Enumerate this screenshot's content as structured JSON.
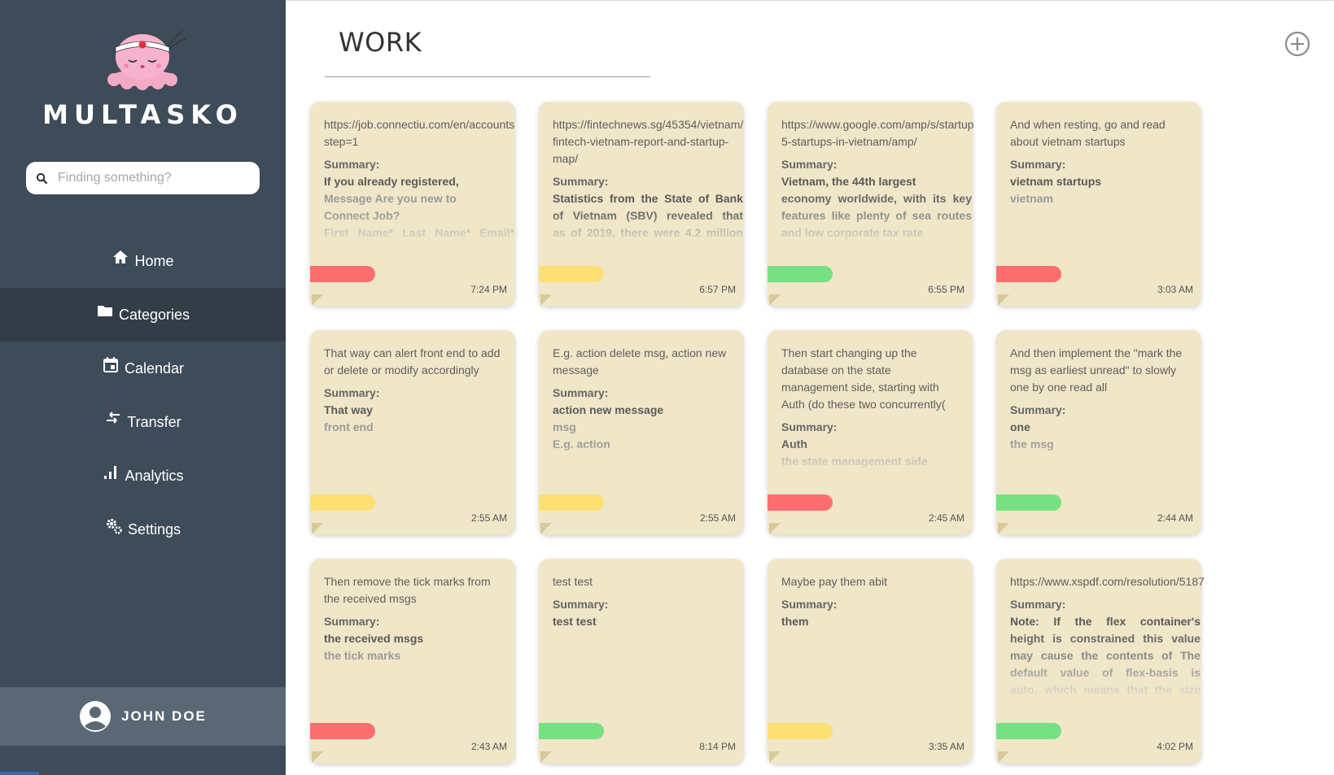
{
  "app": {
    "brand": "MULTASKO"
  },
  "search": {
    "placeholder": "Finding something?"
  },
  "nav": [
    {
      "label": "Home",
      "icon": "home-icon"
    },
    {
      "label": "Categories",
      "icon": "folder-icon",
      "active": true
    },
    {
      "label": "Calendar",
      "icon": "calendar-icon"
    },
    {
      "label": "Transfer",
      "icon": "transfer-icon"
    },
    {
      "label": "Analytics",
      "icon": "analytics-icon"
    },
    {
      "label": "Settings",
      "icon": "settings-icon"
    }
  ],
  "user": {
    "name": "JOHN DOE"
  },
  "main": {
    "title": "WORK"
  },
  "colors": {
    "red": "#fe6e6e",
    "yellow": "#fde074",
    "green": "#77e083",
    "note_bg": "#f0e6c8",
    "sidebar": "#3e4b58"
  },
  "notes": [
    {
      "text": [
        "https://job.connectiu.com/en/accounts",
        "step=1"
      ],
      "summary_label": "Summary:",
      "summary": [
        "If you already registered,",
        "Message Are you new to",
        "Connect Job?",
        "First Name* Last Name* Email*"
      ],
      "tag": "red",
      "time": "7:24 PM"
    },
    {
      "text": [
        "https://fintechnews.sg/45354/vietnam/",
        "fintech-vietnam-report-and-startup-",
        "map/"
      ],
      "summary_label": "Summary:",
      "summary": [
        "Statistics from the State of Bank",
        "of Vietnam (SBV) revealed that",
        "as of 2019, there were 4.2 million"
      ],
      "tag": "yellow",
      "time": "6:57 PM"
    },
    {
      "text": [
        "https://www.google.com/amp/s/startup",
        "5-startups-in-vietnam/amp/"
      ],
      "summary_label": "Summary:",
      "summary": [
        "Vietnam, the 44th largest",
        "economy worldwide, with its key",
        "features like plenty of sea routes",
        "and low corporate tax rate"
      ],
      "tag": "green",
      "time": "6:55 PM"
    },
    {
      "text": [
        "And when resting, go and read",
        "about vietnam startups"
      ],
      "summary_label": "Summary:",
      "summary": [
        "vietnam startups",
        "vietnam"
      ],
      "tag": "red",
      "time": "3:03 AM"
    },
    {
      "text": [
        "That way can alert front end to add",
        "or delete or modify accordingly"
      ],
      "summary_label": "Summary:",
      "summary": [
        "That way",
        "front end"
      ],
      "tag": "yellow",
      "time": "2:55 AM"
    },
    {
      "text": [
        "E.g. action delete msg, action new",
        "message"
      ],
      "summary_label": "Summary:",
      "summary": [
        "action new message",
        "msg",
        "E.g. action"
      ],
      "tag": "yellow",
      "time": "2:55 AM"
    },
    {
      "text": [
        "Then start changing up the",
        "database on the state",
        "management side, starting with",
        "Auth (do these two concurrently("
      ],
      "summary_label": "Summary:",
      "summary": [
        "Auth",
        "the state management side"
      ],
      "tag": "red",
      "time": "2:45 AM"
    },
    {
      "text": [
        "And then implement the \"mark the",
        "msg as earliest unread\" to slowly",
        "one by one read all"
      ],
      "summary_label": "Summary:",
      "summary": [
        "one",
        "the msg"
      ],
      "tag": "green",
      "time": "2:44 AM"
    },
    {
      "text": [
        "Then remove the tick marks from",
        "the received msgs"
      ],
      "summary_label": "Summary:",
      "summary": [
        "the received msgs",
        "the tick marks"
      ],
      "tag": "red",
      "time": "2:43 AM"
    },
    {
      "text": [
        "test test"
      ],
      "summary_label": "Summary:",
      "summary": [
        "test test"
      ],
      "tag": "green",
      "time": "8:14 PM"
    },
    {
      "text": [
        "Maybe pay them abit"
      ],
      "summary_label": "Summary:",
      "summary": [
        "them"
      ],
      "tag": "yellow",
      "time": "3:35 AM"
    },
    {
      "text": [
        "https://www.xspdf.com/resolution/5187"
      ],
      "summary_label": "Summary:",
      "summary": [
        "Note: If the flex container's",
        "height is constrained this value",
        "may cause the contents of The",
        "default value of flex-basis is",
        "auto, which means that the size"
      ],
      "tag": "green",
      "time": "4:02 PM"
    }
  ]
}
